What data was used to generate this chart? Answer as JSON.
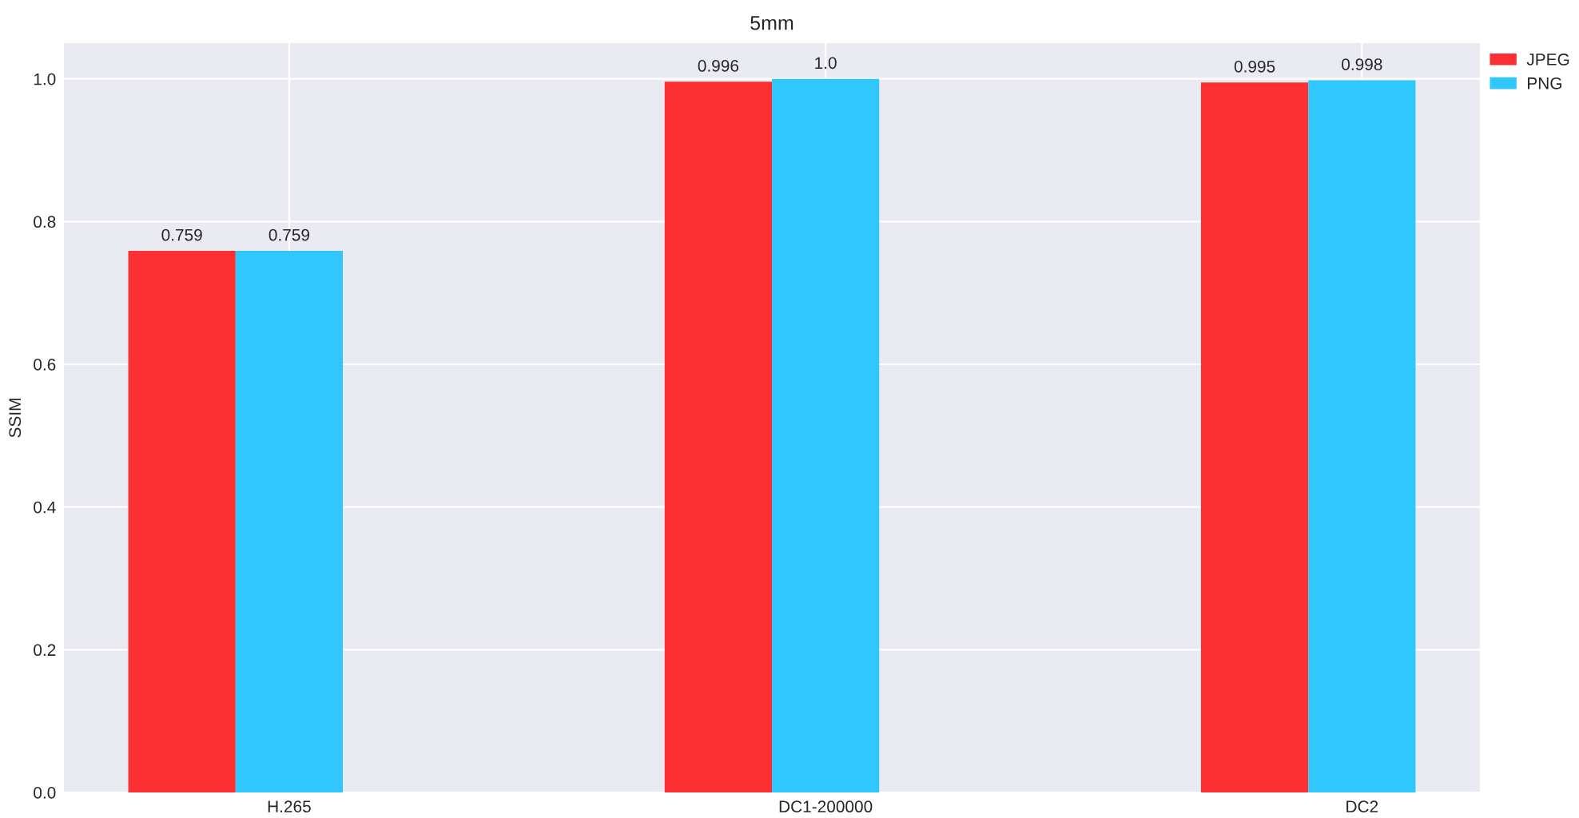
{
  "chart_data": {
    "type": "bar",
    "title": "5mm",
    "ylabel": "SSIM",
    "categories": [
      "H.265",
      "DC1-200000",
      "DC2"
    ],
    "series": [
      {
        "name": "JPEG",
        "color": "#fc2f33",
        "values": [
          0.759,
          0.996,
          0.995
        ],
        "value_labels": [
          "0.759",
          "0.996",
          "0.995"
        ]
      },
      {
        "name": "PNG",
        "color": "#30c8fc",
        "values": [
          0.759,
          1.0,
          0.998
        ],
        "value_labels": [
          "0.759",
          "1.0",
          "0.998"
        ]
      }
    ],
    "ylim": [
      0.0,
      1.05
    ],
    "yticks": [
      {
        "value": 0,
        "label": "0.0"
      },
      0.2,
      0.4,
      0.6,
      0.8,
      {
        "value": 1,
        "label": "1.0"
      }
    ],
    "grid": true,
    "legend": "top right"
  }
}
